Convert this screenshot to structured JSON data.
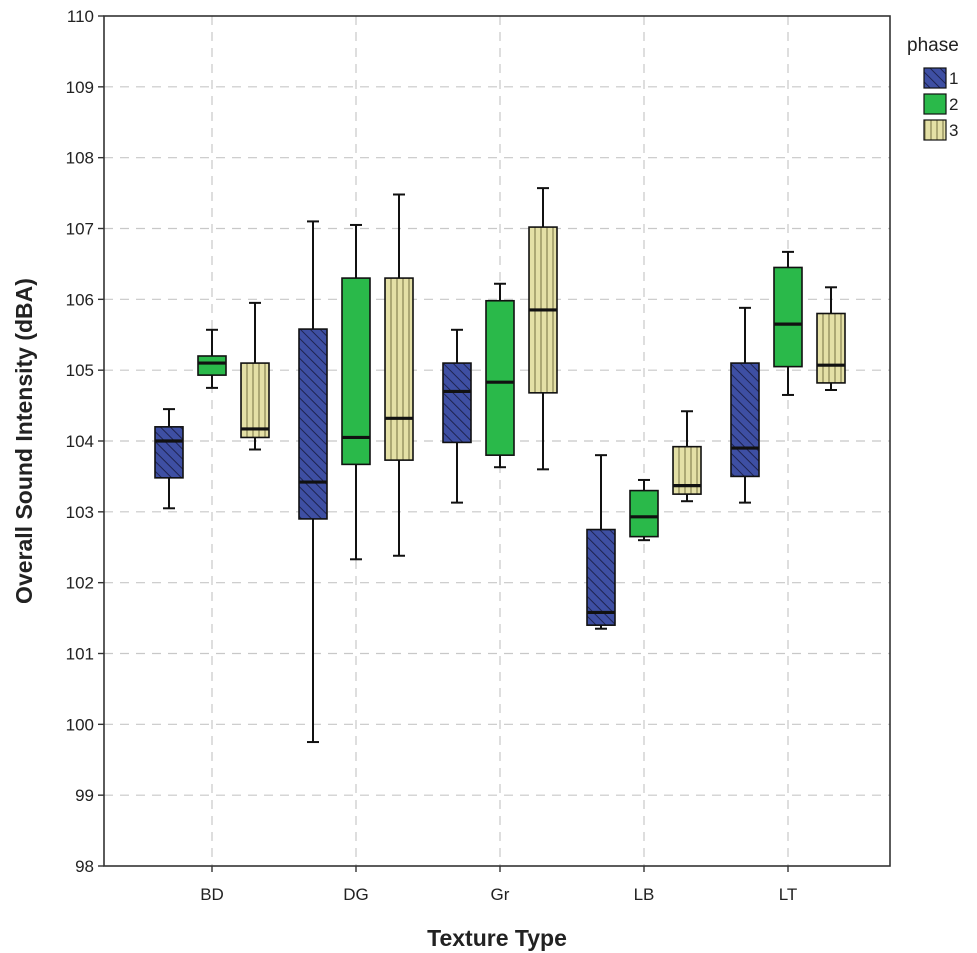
{
  "chart_data": {
    "type": "boxplot",
    "xlabel": "Texture Type",
    "ylabel": "Overall Sound Intensity (dBA)",
    "categories": [
      "BD",
      "DG",
      "Gr",
      "LB",
      "LT"
    ],
    "ylim": [
      98,
      110
    ],
    "yticks": [
      98,
      99,
      100,
      101,
      102,
      103,
      104,
      105,
      106,
      107,
      108,
      109,
      110
    ],
    "grid": true,
    "legend": {
      "title": "phase",
      "position": "right"
    },
    "series": [
      {
        "name": "1",
        "color": "#3e4fa3",
        "pattern": "diagonal-hatch",
        "boxes": [
          {
            "category": "BD",
            "min": 103.05,
            "q1": 103.48,
            "median": 104.0,
            "q3": 104.2,
            "max": 104.45
          },
          {
            "category": "DG",
            "min": 99.75,
            "q1": 102.9,
            "median": 103.42,
            "q3": 105.58,
            "max": 107.1
          },
          {
            "category": "Gr",
            "min": 103.13,
            "q1": 103.98,
            "median": 104.7,
            "q3": 105.1,
            "max": 105.57
          },
          {
            "category": "LB",
            "min": 101.35,
            "q1": 101.4,
            "median": 101.58,
            "q3": 102.75,
            "max": 103.8
          },
          {
            "category": "LT",
            "min": 103.13,
            "q1": 103.5,
            "median": 103.9,
            "q3": 105.1,
            "max": 105.88
          }
        ]
      },
      {
        "name": "2",
        "color": "#2ab94a",
        "pattern": "solid",
        "boxes": [
          {
            "category": "BD",
            "min": 104.75,
            "q1": 104.93,
            "median": 105.1,
            "q3": 105.2,
            "max": 105.57
          },
          {
            "category": "DG",
            "min": 102.33,
            "q1": 103.67,
            "median": 104.05,
            "q3": 106.3,
            "max": 107.05
          },
          {
            "category": "Gr",
            "min": 103.63,
            "q1": 103.8,
            "median": 104.83,
            "q3": 105.98,
            "max": 106.22
          },
          {
            "category": "LB",
            "min": 102.6,
            "q1": 102.65,
            "median": 102.93,
            "q3": 103.3,
            "max": 103.45
          },
          {
            "category": "LT",
            "min": 104.65,
            "q1": 105.05,
            "median": 105.65,
            "q3": 106.45,
            "max": 106.67
          }
        ]
      },
      {
        "name": "3",
        "color": "#e4e0a6",
        "pattern": "vertical-stripes",
        "boxes": [
          {
            "category": "BD",
            "min": 103.88,
            "q1": 104.05,
            "median": 104.17,
            "q3": 105.1,
            "max": 105.95
          },
          {
            "category": "DG",
            "min": 102.38,
            "q1": 103.73,
            "median": 104.32,
            "q3": 106.3,
            "max": 107.48
          },
          {
            "category": "Gr",
            "min": 103.6,
            "q1": 104.68,
            "median": 105.85,
            "q3": 107.02,
            "max": 107.57
          },
          {
            "category": "LB",
            "min": 103.15,
            "q1": 103.25,
            "median": 103.37,
            "q3": 103.92,
            "max": 104.42
          },
          {
            "category": "LT",
            "min": 104.72,
            "q1": 104.82,
            "median": 105.07,
            "q3": 105.8,
            "max": 106.17
          }
        ]
      }
    ]
  }
}
